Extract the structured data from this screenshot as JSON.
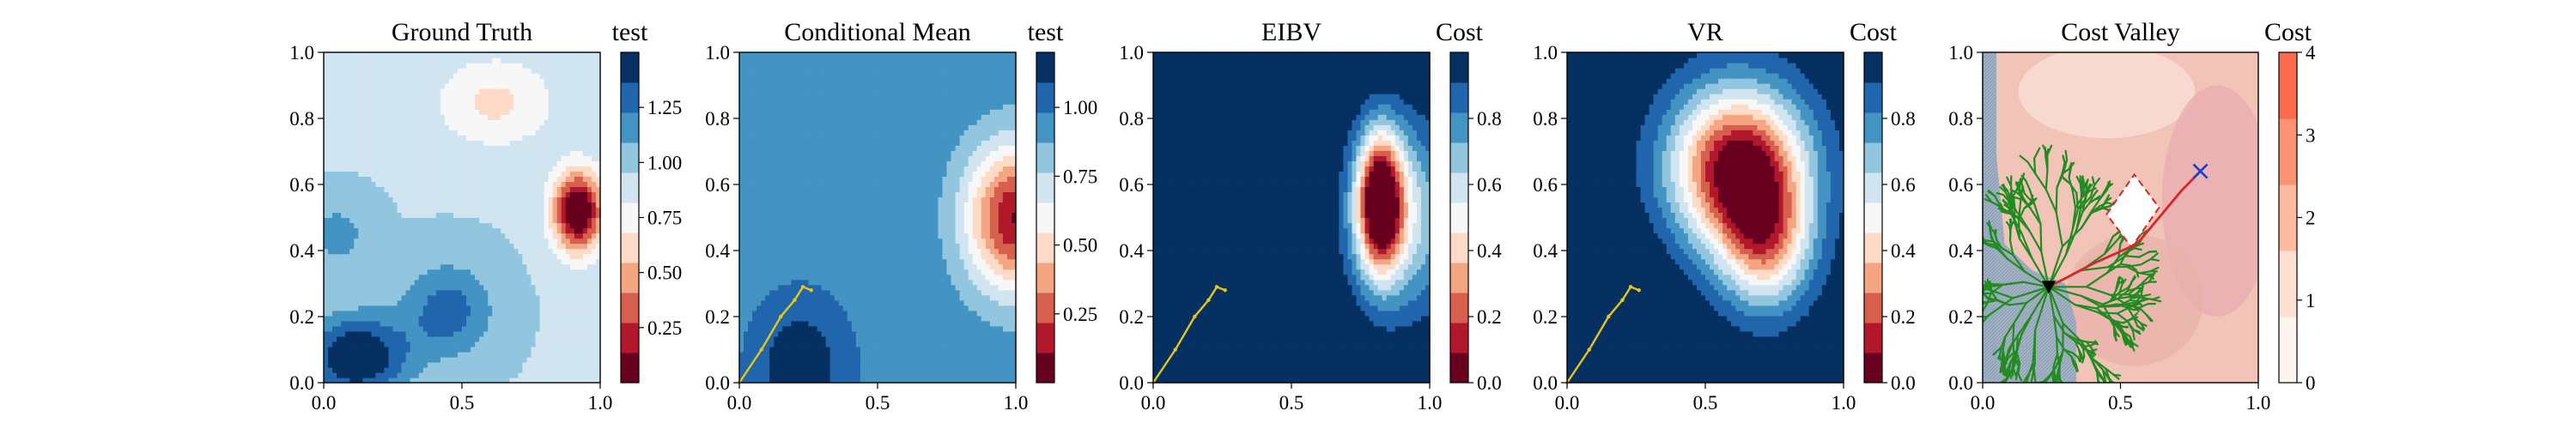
{
  "chart_data": [
    {
      "type": "heatmap",
      "title": "Ground Truth",
      "colorbar_label": "test",
      "colormap": "RdBu",
      "xlim": [
        0.0,
        1.0
      ],
      "ylim": [
        0.0,
        1.0
      ],
      "xticks": [
        "0.0",
        "0.5",
        "1.0"
      ],
      "yticks": [
        "0.0",
        "0.2",
        "0.4",
        "0.6",
        "0.8",
        "1.0"
      ],
      "colorbar_range": [
        0.0,
        1.5
      ],
      "colorbar_ticks": [
        {
          "value": 0.25,
          "label": "0.25"
        },
        {
          "value": 0.5,
          "label": "0.50"
        },
        {
          "value": 0.75,
          "label": "0.75"
        },
        {
          "value": 1.0,
          "label": "1.00"
        },
        {
          "value": 1.25,
          "label": "1.25"
        }
      ],
      "features": [
        {
          "x": 0.92,
          "y": 0.52,
          "sx": 0.09,
          "sy": 0.12,
          "amp": -1.05
        },
        {
          "x": 0.62,
          "y": 0.85,
          "sx": 0.22,
          "sy": 0.14,
          "amp": -0.3
        },
        {
          "x": 0.12,
          "y": 0.08,
          "sx": 0.18,
          "sy": 0.12,
          "amp": 0.6
        },
        {
          "x": 0.45,
          "y": 0.22,
          "sx": 0.16,
          "sy": 0.14,
          "amp": 0.35
        },
        {
          "x": 0.05,
          "y": 0.45,
          "sx": 0.12,
          "sy": 0.1,
          "amp": 0.2
        }
      ],
      "base": 0.95
    },
    {
      "type": "heatmap",
      "title": "Conditional Mean",
      "colorbar_label": "test",
      "colormap": "RdBu",
      "xlim": [
        0.0,
        1.0
      ],
      "ylim": [
        0.0,
        1.0
      ],
      "xticks": [
        "0.0",
        "0.5",
        "1.0"
      ],
      "yticks": [
        "0.0",
        "0.2",
        "0.4",
        "0.6",
        "0.8",
        "1.0"
      ],
      "colorbar_range": [
        0.0,
        1.2
      ],
      "colorbar_ticks": [
        {
          "value": 0.25,
          "label": "0.25"
        },
        {
          "value": 0.5,
          "label": "0.50"
        },
        {
          "value": 0.75,
          "label": "0.75"
        },
        {
          "value": 1.0,
          "label": "1.00"
        }
      ],
      "features": [
        {
          "x": 1.0,
          "y": 0.5,
          "sx": 0.18,
          "sy": 0.22,
          "amp": -0.85
        },
        {
          "x": 0.22,
          "y": 0.05,
          "sx": 0.15,
          "sy": 0.18,
          "amp": 0.25
        }
      ],
      "base": 0.95,
      "path": [
        [
          0.0,
          0.0
        ],
        [
          0.08,
          0.1
        ],
        [
          0.15,
          0.2
        ],
        [
          0.2,
          0.25
        ],
        [
          0.23,
          0.29
        ],
        [
          0.26,
          0.28
        ]
      ]
    },
    {
      "type": "heatmap",
      "title": "EIBV",
      "colorbar_label": "Cost",
      "colormap": "RdBu",
      "xlim": [
        0.0,
        1.0
      ],
      "ylim": [
        0.0,
        1.0
      ],
      "xticks": [
        "0.0",
        "0.5",
        "1.0"
      ],
      "yticks": [
        "0.0",
        "0.2",
        "0.4",
        "0.6",
        "0.8",
        "1.0"
      ],
      "colorbar_range": [
        0.0,
        1.0
      ],
      "colorbar_ticks": [
        {
          "value": 0.0,
          "label": "0.0"
        },
        {
          "value": 0.2,
          "label": "0.2"
        },
        {
          "value": 0.4,
          "label": "0.4"
        },
        {
          "value": 0.6,
          "label": "0.6"
        },
        {
          "value": 0.8,
          "label": "0.8"
        }
      ],
      "features": [
        {
          "x": 0.82,
          "y": 0.55,
          "sx": 0.08,
          "sy": 0.2,
          "amp": -1.0
        },
        {
          "x": 0.9,
          "y": 0.5,
          "sx": 0.2,
          "sy": 0.3,
          "amp": -0.45
        }
      ],
      "base": 1.05,
      "path": [
        [
          0.0,
          0.0
        ],
        [
          0.08,
          0.1
        ],
        [
          0.15,
          0.2
        ],
        [
          0.2,
          0.25
        ],
        [
          0.23,
          0.29
        ],
        [
          0.26,
          0.28
        ]
      ]
    },
    {
      "type": "heatmap",
      "title": "VR",
      "colorbar_label": "Cost",
      "colormap": "RdBu",
      "xlim": [
        0.0,
        1.0
      ],
      "ylim": [
        0.0,
        1.0
      ],
      "xticks": [
        "0.0",
        "0.5",
        "1.0"
      ],
      "yticks": [
        "0.0",
        "0.2",
        "0.4",
        "0.6",
        "0.8",
        "1.0"
      ],
      "colorbar_range": [
        0.0,
        1.0
      ],
      "colorbar_ticks": [
        {
          "value": 0.0,
          "label": "0.0"
        },
        {
          "value": 0.2,
          "label": "0.2"
        },
        {
          "value": 0.4,
          "label": "0.4"
        },
        {
          "value": 0.6,
          "label": "0.6"
        },
        {
          "value": 0.8,
          "label": "0.8"
        }
      ],
      "features": [
        {
          "x": 0.62,
          "y": 0.65,
          "sx": 0.24,
          "sy": 0.24,
          "amp": -1.0
        },
        {
          "x": 0.72,
          "y": 0.42,
          "sx": 0.16,
          "sy": 0.2,
          "amp": -0.55
        },
        {
          "x": 0.12,
          "y": 0.12,
          "sx": 0.2,
          "sy": 0.25,
          "amp": 0.35
        }
      ],
      "base": 1.0,
      "path": [
        [
          0.0,
          0.0
        ],
        [
          0.08,
          0.1
        ],
        [
          0.15,
          0.2
        ],
        [
          0.2,
          0.25
        ],
        [
          0.23,
          0.29
        ],
        [
          0.26,
          0.28
        ]
      ]
    },
    {
      "type": "heatmap",
      "title": "Cost Valley",
      "colorbar_label": "Cost",
      "colormap": "Reds",
      "xlim": [
        0.0,
        1.0
      ],
      "ylim": [
        0.0,
        1.0
      ],
      "xticks": [
        "0.0",
        "0.5",
        "1.0"
      ],
      "yticks": [
        "0.0",
        "0.2",
        "0.4",
        "0.6",
        "0.8",
        "1.0"
      ],
      "colorbar_range": [
        0,
        4
      ],
      "colorbar_ticks": [
        {
          "value": 0,
          "label": "0"
        },
        {
          "value": 1,
          "label": "1"
        },
        {
          "value": 2,
          "label": "2"
        },
        {
          "value": 3,
          "label": "3"
        },
        {
          "value": 4,
          "label": "4"
        }
      ],
      "start_point": [
        0.24,
        0.29
      ],
      "goal_point": [
        0.79,
        0.64
      ],
      "obstacle_polygon": [
        [
          0.45,
          0.51
        ],
        [
          0.55,
          0.63
        ],
        [
          0.64,
          0.53
        ],
        [
          0.54,
          0.41
        ]
      ],
      "route": [
        [
          0.24,
          0.29
        ],
        [
          0.4,
          0.36
        ],
        [
          0.56,
          0.42
        ],
        [
          0.66,
          0.52
        ],
        [
          0.72,
          0.58
        ],
        [
          0.79,
          0.64
        ]
      ],
      "colors": {
        "tree": "#228b22",
        "route": "#d62728",
        "obstacle": "#d62728",
        "goal": "#1f3fbf",
        "start": "#000000",
        "low_cost": "#8fa2b8"
      }
    }
  ]
}
